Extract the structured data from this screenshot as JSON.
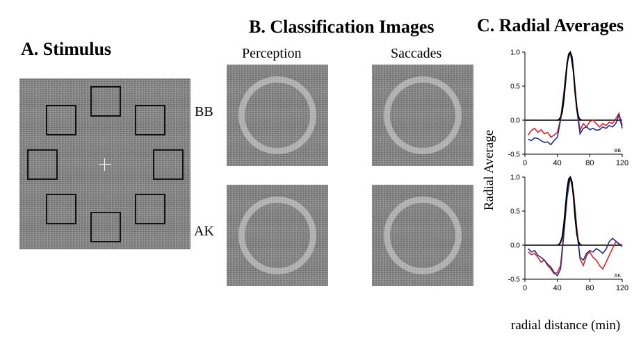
{
  "panel_a": {
    "title": "A. Stimulus"
  },
  "panel_b": {
    "title": "B. Classification Images",
    "col_labels": [
      "Perception",
      "Saccades"
    ],
    "row_labels": [
      "BB",
      "AK"
    ]
  },
  "panel_c": {
    "title": "C. Radial Averages",
    "ylabel": "Radial Average",
    "xlabel": "radial distance (min)"
  },
  "colors": {
    "perception": "#e0202a",
    "saccades": "#1e2f8a",
    "model": "#000000"
  },
  "chart_data": [
    {
      "type": "line",
      "subject": "BB",
      "ylim": [
        -0.5,
        1.0
      ],
      "xlim": [
        0,
        120
      ],
      "xticks": [
        0,
        40,
        80,
        120
      ],
      "yticks": [
        -0.5,
        0.0,
        0.5,
        1.0
      ],
      "ytick_labels": [
        "-0.5",
        "0.0",
        "0.5",
        "1.0"
      ],
      "series": [
        {
          "color": "red",
          "x": [
            4,
            8,
            12,
            16,
            20,
            24,
            28,
            32,
            36,
            40,
            44,
            48,
            52,
            56,
            60,
            64,
            68,
            72,
            76,
            80,
            84,
            88,
            92,
            96,
            100,
            104,
            108,
            112,
            116,
            120
          ],
          "y": [
            -0.22,
            -0.15,
            -0.12,
            -0.18,
            -0.14,
            -0.2,
            -0.18,
            -0.25,
            -0.22,
            -0.18,
            0.02,
            0.4,
            0.85,
            1.0,
            0.72,
            0.2,
            -0.15,
            -0.05,
            -0.1,
            -0.02,
            0.0,
            -0.05,
            -0.1,
            -0.05,
            -0.08,
            -0.03,
            -0.05,
            0.02,
            0.1,
            -0.08
          ]
        },
        {
          "color": "blue",
          "x": [
            4,
            8,
            12,
            16,
            20,
            24,
            28,
            32,
            36,
            40,
            44,
            48,
            52,
            56,
            60,
            64,
            68,
            72,
            76,
            80,
            84,
            88,
            92,
            96,
            100,
            104,
            108,
            112,
            116,
            120
          ],
          "y": [
            -0.28,
            -0.3,
            -0.26,
            -0.27,
            -0.3,
            -0.33,
            -0.32,
            -0.36,
            -0.3,
            -0.25,
            0.0,
            0.38,
            0.85,
            1.0,
            0.7,
            0.15,
            -0.2,
            -0.12,
            -0.1,
            -0.14,
            -0.12,
            -0.15,
            -0.14,
            -0.1,
            -0.12,
            -0.08,
            -0.1,
            -0.05,
            0.08,
            -0.12
          ]
        },
        {
          "color": "black",
          "x": [
            40,
            42,
            44,
            46,
            48,
            50,
            52,
            54,
            56,
            58,
            60,
            62,
            64,
            66,
            68,
            70
          ],
          "y": [
            0,
            0.01,
            0.04,
            0.12,
            0.3,
            0.55,
            0.82,
            0.97,
            1.0,
            0.93,
            0.7,
            0.4,
            0.17,
            0.05,
            0.01,
            0
          ]
        }
      ]
    },
    {
      "type": "line",
      "subject": "AK",
      "ylim": [
        -0.5,
        1.0
      ],
      "xlim": [
        0,
        120
      ],
      "xticks": [
        0,
        40,
        80,
        120
      ],
      "yticks": [
        -0.5,
        0.0,
        0.5,
        1.0
      ],
      "ytick_labels": [
        "-0.5",
        "0.0",
        "0.5",
        "1.0"
      ],
      "series": [
        {
          "color": "red",
          "x": [
            4,
            8,
            12,
            16,
            20,
            24,
            28,
            32,
            36,
            40,
            44,
            48,
            52,
            56,
            60,
            64,
            68,
            72,
            76,
            80,
            84,
            88,
            92,
            96,
            100,
            104,
            108,
            112,
            116,
            120
          ],
          "y": [
            -0.1,
            -0.14,
            -0.12,
            -0.18,
            -0.25,
            -0.22,
            -0.3,
            -0.35,
            -0.42,
            -0.4,
            -0.3,
            0.2,
            0.75,
            1.0,
            0.78,
            0.25,
            -0.2,
            -0.3,
            -0.15,
            -0.1,
            -0.18,
            -0.22,
            -0.3,
            -0.35,
            -0.25,
            -0.15,
            -0.05,
            0.05,
            0.02,
            0.0
          ]
        },
        {
          "color": "blue",
          "x": [
            4,
            8,
            12,
            16,
            20,
            24,
            28,
            32,
            36,
            40,
            44,
            48,
            52,
            56,
            60,
            64,
            68,
            72,
            76,
            80,
            84,
            88,
            92,
            96,
            100,
            104,
            108,
            112,
            116,
            120
          ],
          "y": [
            -0.05,
            -0.1,
            -0.08,
            -0.15,
            -0.18,
            -0.22,
            -0.28,
            -0.32,
            -0.4,
            -0.45,
            -0.35,
            0.15,
            0.7,
            1.0,
            0.75,
            0.2,
            -0.18,
            -0.22,
            -0.12,
            -0.08,
            -0.1,
            -0.05,
            -0.08,
            -0.12,
            -0.06,
            0.05,
            0.1,
            0.06,
            0.02,
            -0.02
          ]
        },
        {
          "color": "black",
          "x": [
            40,
            42,
            44,
            46,
            48,
            50,
            52,
            54,
            56,
            58,
            60,
            62,
            64,
            66,
            68,
            70
          ],
          "y": [
            0,
            0.01,
            0.04,
            0.12,
            0.3,
            0.55,
            0.82,
            0.97,
            1.0,
            0.93,
            0.7,
            0.4,
            0.17,
            0.05,
            0.01,
            0
          ]
        }
      ]
    }
  ]
}
